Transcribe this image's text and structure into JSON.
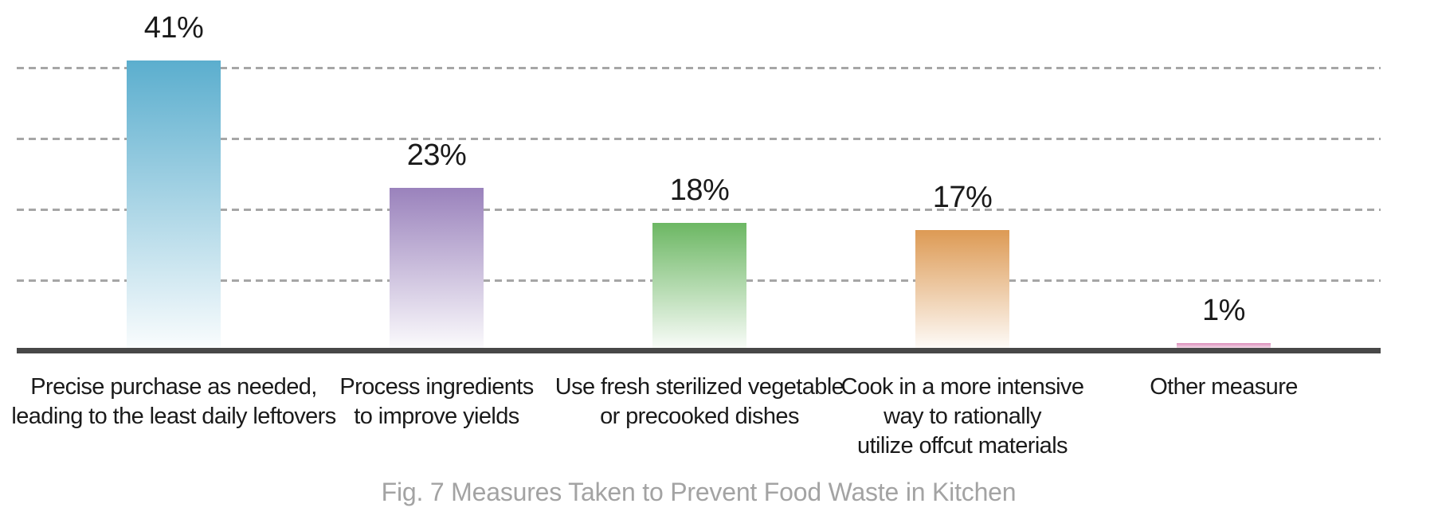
{
  "chart_data": {
    "type": "bar",
    "caption": "Fig. 7 Measures Taken to Prevent Food Waste in Kitchen",
    "categories": [
      "Precise purchase as needed,\nleading to the least daily leftovers",
      "Process ingredients\nto improve yields",
      "Use fresh sterilized vegetable\nor precooked dishes",
      "Cook in a more intensive\nway to rationally\nutilize offcut materials",
      "Other measure"
    ],
    "values": [
      41,
      23,
      18,
      17,
      1
    ],
    "value_labels": [
      "41%",
      "23%",
      "18%",
      "17%",
      "1%"
    ],
    "bar_colors": [
      "#5BAECE",
      "#9A82BC",
      "#6CB763",
      "#DD9A54",
      "#DC8EBB"
    ],
    "bar_fade_color": "#ffffff",
    "ylim": [
      0,
      49.5
    ],
    "gridline_values": [
      10,
      20,
      30,
      40
    ],
    "grid_style": "dashed",
    "gridline_color": "#a6a6a6",
    "axis_line_color": "#484848",
    "value_label_color": "#1a1a1a",
    "caption_color": "#a3a3a3",
    "legend": "none",
    "xlabel": "",
    "ylabel": ""
  }
}
